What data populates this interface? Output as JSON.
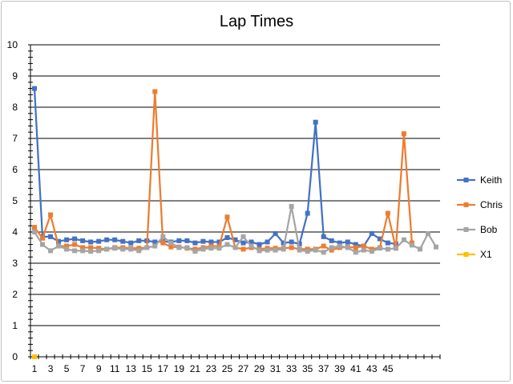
{
  "chart_data": {
    "type": "line",
    "title": "Lap Times",
    "xlabel": "",
    "ylabel": "",
    "ylim": [
      0,
      10
    ],
    "yticks": [
      0,
      1,
      2,
      3,
      4,
      5,
      6,
      7,
      8,
      9,
      10
    ],
    "x_tick_labels": [
      "1",
      "3",
      "5",
      "7",
      "9",
      "11",
      "13",
      "15",
      "17",
      "19",
      "21",
      "23",
      "25",
      "27",
      "29",
      "31",
      "33",
      "35",
      "37",
      "39",
      "41",
      "43",
      "45"
    ],
    "grid": "horizontal",
    "legend_position": "right",
    "series": [
      {
        "name": "Keith",
        "color": "#4472c4",
        "values": [
          8.6,
          3.85,
          3.85,
          3.7,
          3.75,
          3.78,
          3.72,
          3.68,
          3.7,
          3.75,
          3.75,
          3.7,
          3.65,
          3.72,
          3.72,
          3.68,
          3.7,
          3.68,
          3.72,
          3.72,
          3.65,
          3.7,
          3.68,
          3.68,
          3.82,
          3.75,
          3.65,
          3.68,
          3.6,
          3.68,
          3.95,
          3.65,
          3.68,
          3.62,
          4.6,
          7.52,
          3.85,
          3.72,
          3.65,
          3.68,
          3.6,
          3.55,
          3.95,
          3.78,
          3.65,
          3.62
        ]
      },
      {
        "name": "Chris",
        "color": "#ed7d31",
        "values": [
          4.15,
          3.8,
          4.55,
          3.55,
          3.55,
          3.6,
          3.5,
          3.5,
          3.48,
          3.45,
          3.5,
          3.5,
          3.48,
          3.48,
          3.5,
          8.5,
          3.65,
          3.52,
          3.52,
          3.48,
          3.45,
          3.5,
          3.55,
          3.55,
          4.48,
          3.5,
          3.45,
          3.5,
          3.45,
          3.48,
          3.48,
          3.48,
          3.5,
          3.45,
          3.45,
          3.45,
          3.55,
          3.42,
          3.5,
          3.52,
          3.5,
          3.55,
          3.45,
          3.5,
          4.6,
          3.48,
          7.15,
          3.65
        ]
      },
      {
        "name": "Bob",
        "color": "#a5a5a5",
        "values": [
          4.0,
          3.6,
          3.4,
          3.55,
          3.45,
          3.4,
          3.4,
          3.38,
          3.4,
          3.45,
          3.48,
          3.45,
          3.45,
          3.4,
          3.5,
          3.55,
          3.85,
          3.65,
          3.5,
          3.5,
          3.38,
          3.45,
          3.48,
          3.48,
          3.6,
          3.5,
          3.85,
          3.55,
          3.4,
          3.42,
          3.42,
          3.45,
          4.82,
          3.42,
          3.38,
          3.42,
          3.35,
          3.5,
          3.55,
          3.5,
          3.35,
          3.42,
          3.38,
          3.48,
          3.45,
          3.48,
          3.75,
          3.58,
          3.45,
          3.95,
          3.52
        ]
      },
      {
        "name": "X1",
        "color": "#ffc000",
        "values": [
          0
        ]
      }
    ]
  }
}
